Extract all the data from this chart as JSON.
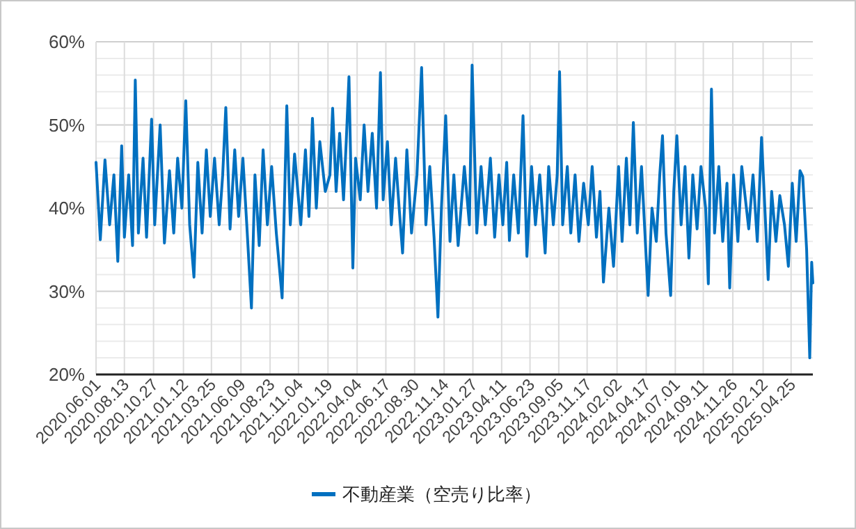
{
  "chart_data": {
    "type": "line",
    "x": [
      "2020-06-01",
      "2020-06-12",
      "2020-06-24",
      "2020-07-06",
      "2020-07-17",
      "2020-07-27",
      "2020-08-06",
      "2020-08-13",
      "2020-08-24",
      "2020-09-03",
      "2020-09-10",
      "2020-09-18",
      "2020-09-30",
      "2020-10-09",
      "2020-10-22",
      "2020-10-30",
      "2020-11-13",
      "2020-11-24",
      "2020-12-07",
      "2020-12-18",
      "2020-12-28",
      "2021-01-08",
      "2021-01-18",
      "2021-01-28",
      "2021-02-08",
      "2021-02-18",
      "2021-03-01",
      "2021-03-12",
      "2021-03-22",
      "2021-04-02",
      "2021-04-14",
      "2021-04-23",
      "2021-05-01",
      "2021-05-12",
      "2021-05-24",
      "2021-06-03",
      "2021-06-14",
      "2021-06-24",
      "2021-07-06",
      "2021-07-15",
      "2021-07-26",
      "2021-08-05",
      "2021-08-16",
      "2021-08-27",
      "2021-09-08",
      "2021-09-23",
      "2021-10-05",
      "2021-10-14",
      "2021-10-25",
      "2021-11-10",
      "2021-11-22",
      "2021-12-01",
      "2021-12-10",
      "2021-12-20",
      "2021-12-29",
      "2022-01-12",
      "2022-01-24",
      "2022-01-31",
      "2022-02-09",
      "2022-02-18",
      "2022-02-28",
      "2022-03-07",
      "2022-03-14",
      "2022-03-24",
      "2022-03-31",
      "2022-04-12",
      "2022-04-22",
      "2022-05-02",
      "2022-05-13",
      "2022-05-24",
      "2022-06-03",
      "2022-06-10",
      "2022-06-21",
      "2022-07-01",
      "2022-07-12",
      "2022-07-22",
      "2022-07-30",
      "2022-08-10",
      "2022-08-22",
      "2022-09-05",
      "2022-09-17",
      "2022-09-28",
      "2022-10-08",
      "2022-10-19",
      "2022-10-29",
      "2022-11-07",
      "2022-11-18",
      "2022-11-29",
      "2022-12-09",
      "2022-12-20",
      "2023-01-05",
      "2023-01-18",
      "2023-01-25",
      "2023-02-06",
      "2023-02-17",
      "2023-02-28",
      "2023-03-13",
      "2023-03-24",
      "2023-04-04",
      "2023-04-14",
      "2023-04-24",
      "2023-05-01",
      "2023-05-12",
      "2023-05-24",
      "2023-06-05",
      "2023-06-15",
      "2023-06-27",
      "2023-07-07",
      "2023-07-18",
      "2023-08-01",
      "2023-08-10",
      "2023-08-22",
      "2023-09-01",
      "2023-09-07",
      "2023-09-15",
      "2023-09-27",
      "2023-10-06",
      "2023-10-17",
      "2023-10-27",
      "2023-11-08",
      "2023-11-20",
      "2023-11-30",
      "2023-12-11",
      "2023-12-20",
      "2023-12-29",
      "2024-01-12",
      "2024-01-24",
      "2024-02-06",
      "2024-02-15",
      "2024-02-26",
      "2024-03-06",
      "2024-03-15",
      "2024-03-25",
      "2024-04-05",
      "2024-04-22",
      "2024-05-02",
      "2024-05-13",
      "2024-05-22",
      "2024-05-29",
      "2024-06-07",
      "2024-06-19",
      "2024-06-27",
      "2024-07-05",
      "2024-07-16",
      "2024-07-26",
      "2024-08-05",
      "2024-08-15",
      "2024-08-26",
      "2024-09-05",
      "2024-09-17",
      "2024-09-24",
      "2024-10-02",
      "2024-10-10",
      "2024-10-21",
      "2024-10-31",
      "2024-11-11",
      "2024-11-18",
      "2024-11-28",
      "2024-12-09",
      "2024-12-19",
      "2025-01-06",
      "2025-01-17",
      "2025-01-28",
      "2025-02-08",
      "2025-02-25",
      "2025-03-06",
      "2025-03-17",
      "2025-03-27",
      "2025-04-08",
      "2025-04-18",
      "2025-04-28",
      "2025-05-08",
      "2025-05-18",
      "2025-05-25",
      "2025-06-04",
      "2025-06-12",
      "2025-06-17",
      "2025-06-20"
    ],
    "series": [
      {
        "name": "不動産業（空売り比率）",
        "color": "#0070c0",
        "values": [
          45.5,
          36.2,
          45.8,
          38,
          44,
          33.6,
          47.5,
          36.5,
          44,
          35.5,
          55.4,
          37,
          46,
          36.5,
          50.7,
          38,
          50,
          35.8,
          44.5,
          37,
          46,
          40,
          52.9,
          38,
          31.7,
          45.5,
          37,
          47,
          39,
          46,
          38,
          44,
          52.1,
          37.5,
          47,
          39,
          46,
          38,
          28,
          44,
          35.5,
          47,
          38,
          45,
          37,
          29.2,
          52.3,
          38,
          46.5,
          38,
          47,
          39,
          50.8,
          40,
          48,
          42,
          44,
          52,
          42,
          49,
          41,
          48,
          55.8,
          32.8,
          46,
          41,
          50,
          42,
          49,
          40,
          56.3,
          41,
          48,
          38,
          46,
          39.5,
          34.6,
          47,
          37,
          44,
          56.9,
          38,
          45,
          36.5,
          26.9,
          40,
          51.1,
          36,
          44,
          35.5,
          45,
          38,
          57.2,
          37,
          45,
          38,
          46,
          36.5,
          44,
          38,
          45.5,
          36.1,
          44,
          37,
          51.1,
          34.2,
          45,
          38,
          44,
          34.6,
          45,
          38,
          44,
          56.4,
          38,
          45,
          37,
          44,
          36,
          43,
          38,
          45,
          36.5,
          42,
          31.1,
          40,
          33,
          45,
          36,
          46,
          38,
          50.3,
          37,
          45,
          29.5,
          40,
          36,
          44,
          48.7,
          37,
          29.5,
          42,
          48.7,
          38,
          45,
          34,
          44,
          37.5,
          45,
          40,
          30.9,
          54.3,
          37,
          45,
          36,
          43,
          30.4,
          44,
          36,
          45,
          37.5,
          44,
          36,
          48.5,
          31.4,
          42,
          36,
          41.5,
          38,
          33,
          43,
          36,
          44.5,
          43.8,
          35,
          22,
          33.5,
          31
        ]
      }
    ],
    "xlim": [
      "2020-06-01",
      "2025-06-20"
    ],
    "xticks": [
      {
        "value": "2020-06-01",
        "label": "2020.06.01"
      },
      {
        "value": "2020-08-13",
        "label": "2020.08.13"
      },
      {
        "value": "2020-10-27",
        "label": "2020.10.27"
      },
      {
        "value": "2021-01-12",
        "label": "2021.01.12"
      },
      {
        "value": "2021-03-25",
        "label": "2021.03.25"
      },
      {
        "value": "2021-06-09",
        "label": "2021.06.09"
      },
      {
        "value": "2021-08-23",
        "label": "2021.08.23"
      },
      {
        "value": "2021-11-04",
        "label": "2021.11.04"
      },
      {
        "value": "2022-01-19",
        "label": "2022.01.19"
      },
      {
        "value": "2022-04-04",
        "label": "2022.04.04"
      },
      {
        "value": "2022-06-17",
        "label": "2022.06.17"
      },
      {
        "value": "2022-08-30",
        "label": "2022.08.30"
      },
      {
        "value": "2022-11-14",
        "label": "2022.11.14"
      },
      {
        "value": "2023-01-27",
        "label": "2023.01.27"
      },
      {
        "value": "2023-04-11",
        "label": "2023.04.11"
      },
      {
        "value": "2023-06-23",
        "label": "2023.06.23"
      },
      {
        "value": "2023-09-05",
        "label": "2023.09.05"
      },
      {
        "value": "2023-11-17",
        "label": "2023.11.17"
      },
      {
        "value": "2024-02-02",
        "label": "2024.02.02"
      },
      {
        "value": "2024-04-17",
        "label": "2024.04.17"
      },
      {
        "value": "2024-07-01",
        "label": "2024.07.01"
      },
      {
        "value": "2024-09-11",
        "label": "2024.09.11"
      },
      {
        "value": "2024-11-26",
        "label": "2024.11.26"
      },
      {
        "value": "2025-02-12",
        "label": "2025.02.12"
      },
      {
        "value": "2025-04-25",
        "label": "2025.04.25"
      }
    ],
    "ylim": [
      20,
      60
    ],
    "yticks": [
      {
        "value": 20,
        "label": "20%"
      },
      {
        "value": 22,
        "label": null
      },
      {
        "value": 24,
        "label": null
      },
      {
        "value": 26,
        "label": null
      },
      {
        "value": 28,
        "label": null
      },
      {
        "value": 30,
        "label": "30%"
      },
      {
        "value": 32,
        "label": null
      },
      {
        "value": 34,
        "label": null
      },
      {
        "value": 36,
        "label": null
      },
      {
        "value": 38,
        "label": null
      },
      {
        "value": 40,
        "label": "40%"
      },
      {
        "value": 42,
        "label": null
      },
      {
        "value": 44,
        "label": null
      },
      {
        "value": 46,
        "label": null
      },
      {
        "value": 48,
        "label": null
      },
      {
        "value": 50,
        "label": "50%"
      },
      {
        "value": 52,
        "label": null
      },
      {
        "value": 54,
        "label": null
      },
      {
        "value": 56,
        "label": null
      },
      {
        "value": 58,
        "label": null
      },
      {
        "value": 60,
        "label": "60%"
      }
    ],
    "grid": true,
    "legend": "bottom"
  }
}
